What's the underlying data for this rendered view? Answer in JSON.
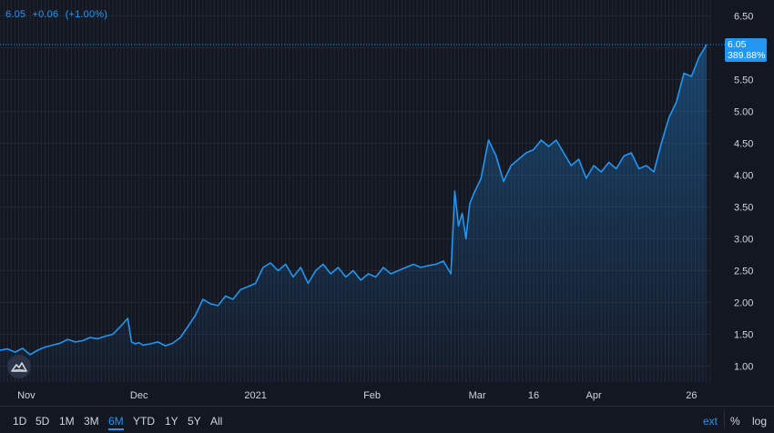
{
  "legend": {
    "price": "6.05",
    "change": "+0.06",
    "change_pct": "(+1.00%)"
  },
  "price_tag": {
    "price": "6.05",
    "pct": "389.88%"
  },
  "colors": {
    "background": "#131722",
    "line": "#2196f3",
    "grid": "#222631",
    "axis_text": "#d1d4dc",
    "price_tag_bg": "#2196f3"
  },
  "toolbar": {
    "ranges": [
      "1D",
      "5D",
      "1M",
      "3M",
      "6M",
      "YTD",
      "1Y",
      "5Y",
      "All"
    ],
    "active_range": "6M",
    "options": [
      "ext",
      "%",
      "log"
    ],
    "active_option": "ext"
  },
  "logo_icon": "mountain-logo-icon",
  "chart_data": {
    "type": "area",
    "title": "",
    "xlabel": "",
    "ylabel": "",
    "ylim": [
      0.75,
      6.75
    ],
    "yticks": [
      1.0,
      1.5,
      2.0,
      2.5,
      3.0,
      3.5,
      4.0,
      4.5,
      5.0,
      5.5,
      6.0,
      6.5
    ],
    "ytick_labels": [
      "1.00",
      "1.50",
      "2.00",
      "2.50",
      "3.00",
      "3.50",
      "4.00",
      "4.50",
      "5.00",
      "5.50",
      "6.00",
      "6.50"
    ],
    "x_tick_labels": [
      "Nov",
      "Dec",
      "2021",
      "Feb",
      "Mar",
      "16",
      "Apr",
      "26"
    ],
    "x_tick_days": [
      7,
      37,
      68,
      99,
      127,
      142,
      158,
      184
    ],
    "x_range_days": [
      0,
      189
    ],
    "last_price": 6.05,
    "grid": true,
    "series": [
      {
        "name": "",
        "x_days": [
          0,
          2,
          4,
          6,
          8,
          10,
          12,
          14,
          16,
          18,
          20,
          22,
          24,
          26,
          28,
          30,
          32,
          34,
          35,
          36,
          37,
          38,
          40,
          42,
          44,
          46,
          48,
          50,
          52,
          54,
          56,
          58,
          60,
          62,
          64,
          66,
          68,
          70,
          72,
          74,
          76,
          78,
          80,
          82,
          84,
          86,
          88,
          90,
          92,
          94,
          96,
          98,
          100,
          102,
          104,
          106,
          108,
          110,
          112,
          114,
          116,
          118,
          120,
          121,
          122,
          123,
          124,
          125,
          126,
          128,
          130,
          132,
          134,
          136,
          138,
          140,
          142,
          144,
          146,
          148,
          150,
          152,
          154,
          156,
          158,
          160,
          162,
          164,
          166,
          168,
          170,
          172,
          174,
          176,
          178,
          180,
          182,
          184,
          186,
          188
        ],
        "values": [
          1.25,
          1.27,
          1.22,
          1.28,
          1.18,
          1.25,
          1.3,
          1.33,
          1.36,
          1.42,
          1.38,
          1.4,
          1.45,
          1.43,
          1.47,
          1.5,
          1.62,
          1.75,
          1.38,
          1.35,
          1.37,
          1.33,
          1.35,
          1.38,
          1.32,
          1.36,
          1.45,
          1.62,
          1.8,
          2.05,
          1.98,
          1.95,
          2.1,
          2.05,
          2.2,
          2.25,
          2.3,
          2.55,
          2.62,
          2.5,
          2.6,
          2.4,
          2.55,
          2.3,
          2.5,
          2.6,
          2.45,
          2.55,
          2.4,
          2.5,
          2.35,
          2.45,
          2.4,
          2.55,
          2.45,
          2.5,
          2.55,
          2.6,
          2.55,
          2.58,
          2.6,
          2.65,
          2.45,
          3.75,
          3.2,
          3.4,
          3.0,
          3.55,
          3.7,
          3.95,
          4.55,
          4.3,
          3.9,
          4.15,
          4.25,
          4.35,
          4.4,
          4.55,
          4.45,
          4.55,
          4.35,
          4.15,
          4.25,
          3.95,
          4.15,
          4.05,
          4.2,
          4.1,
          4.3,
          4.35,
          4.1,
          4.15,
          4.05,
          4.5,
          4.9,
          5.15,
          5.6,
          5.55,
          5.85,
          6.05
        ]
      }
    ]
  }
}
